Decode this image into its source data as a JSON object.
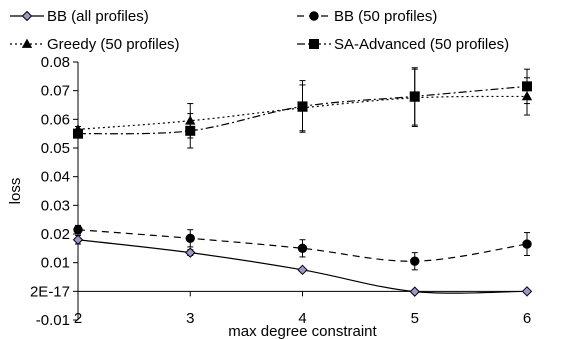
{
  "chart_data": {
    "type": "line",
    "title": "",
    "xlabel": "max degree constraint",
    "ylabel": "loss",
    "x": [
      2,
      3,
      4,
      5,
      6
    ],
    "x_tick_labels": [
      "2",
      "3",
      "4",
      "5",
      "6"
    ],
    "xlim": [
      2,
      6
    ],
    "ylim": [
      -0.01,
      0.08
    ],
    "y_ticks": [
      -0.01,
      0,
      0.01,
      0.02,
      0.03,
      0.04,
      0.05,
      0.06,
      0.07,
      0.08
    ],
    "y_tick_labels": [
      "-0.01",
      "2E-17",
      "0.01",
      "0.02",
      "0.03",
      "0.04",
      "0.05",
      "0.06",
      "0.07",
      "0.08"
    ],
    "grid": false,
    "legend_position": "top",
    "series": [
      {
        "name": "BB (all profiles)",
        "values": [
          0.018,
          0.0135,
          0.0075,
          -0.0001,
          0.0
        ],
        "errors": [
          0.0015,
          0.001,
          0.0005,
          0.0003,
          0.0003
        ],
        "marker": "diamond",
        "line": "solid",
        "color": "#000000",
        "marker_fill": "#9999cc"
      },
      {
        "name": "BB (50 profiles)",
        "values": [
          0.0215,
          0.0185,
          0.015,
          0.0105,
          0.0165
        ],
        "errors": [
          0.0015,
          0.003,
          0.003,
          0.003,
          0.004
        ],
        "marker": "circle",
        "line": "dashed",
        "color": "#000000",
        "marker_fill": "#000000"
      },
      {
        "name": "Greedy (50 profiles)",
        "values": [
          0.0565,
          0.0595,
          0.064,
          0.0675,
          0.068
        ],
        "errors": [
          0.001,
          0.006,
          0.008,
          0.01,
          0.0065
        ],
        "marker": "triangle",
        "line": "dotted",
        "color": "#000000",
        "marker_fill": "#000000"
      },
      {
        "name": "SA-Advanced (50 profiles)",
        "values": [
          0.055,
          0.056,
          0.0645,
          0.068,
          0.0715
        ],
        "errors": [
          0.0015,
          0.006,
          0.009,
          0.01,
          0.006
        ],
        "marker": "square",
        "line": "dashdot",
        "color": "#000000",
        "marker_fill": "#000000"
      }
    ]
  }
}
